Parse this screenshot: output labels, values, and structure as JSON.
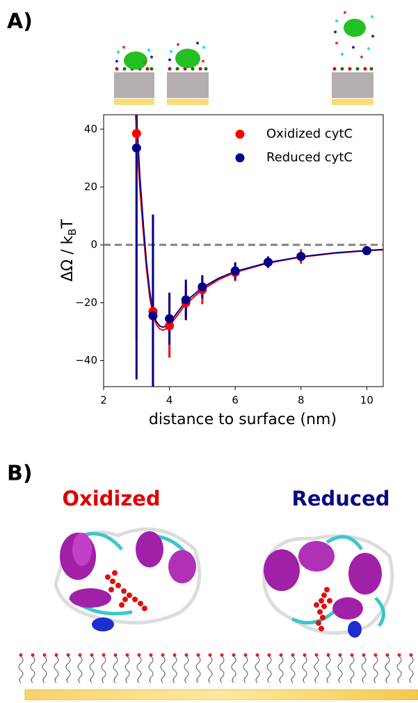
{
  "panels": {
    "a_label": "A)",
    "b_label": "B)",
    "b_titles": [
      "Oxidized",
      "Reduced"
    ]
  },
  "chart_data": {
    "type": "errorbar",
    "xlabel": "distance to surface (nm)",
    "ylabel": {
      "main": "ΔΩ / k",
      "sub": "B",
      "end": "T"
    },
    "xlim": [
      2,
      10.5
    ],
    "ylim": [
      -49,
      45
    ],
    "xticks": [
      2,
      4,
      6,
      8,
      10
    ],
    "yticks": [
      {
        "value": -40,
        "label": "−40"
      },
      {
        "value": -20,
        "label": "−20"
      },
      0,
      20,
      40
    ],
    "hline": {
      "value": 0,
      "color": "#808080",
      "dashed": true
    },
    "legend": "upper right",
    "series": [
      {
        "name": "Oxidized cytC",
        "color": "#ff0000",
        "x": [
          3,
          3.5,
          4,
          4.5,
          5,
          6,
          7,
          8,
          10
        ],
        "values": [
          38.5,
          -23,
          -28,
          -20,
          -15.5,
          -9.5,
          -6,
          -4,
          -2
        ],
        "errors": [
          71,
          33,
          11,
          6,
          5,
          3,
          2,
          2.5,
          1
        ]
      },
      {
        "name": "Reduced cytC",
        "color": "#00008b",
        "x": [
          3,
          3.5,
          4,
          4.5,
          5,
          6,
          7,
          8,
          10
        ],
        "values": [
          33.5,
          -24.5,
          -25.5,
          -19,
          -14.5,
          -9,
          -6,
          -4,
          -2
        ],
        "errors": [
          80,
          35,
          9,
          7,
          4,
          3,
          2,
          1,
          1
        ]
      }
    ],
    "fits": [
      {
        "color": "#ff0000",
        "x": [
          2.9,
          3.0,
          3.1,
          3.2,
          3.3,
          3.4,
          3.5,
          3.6,
          3.7,
          3.8,
          3.9,
          4.0,
          4.2,
          4.5,
          5,
          5.5,
          6,
          7,
          8,
          9,
          10,
          10.5
        ],
        "values": [
          62,
          38,
          20,
          5,
          -8,
          -18,
          -24,
          -27.5,
          -29,
          -29.5,
          -29,
          -28,
          -25,
          -20.5,
          -15.5,
          -12,
          -9.5,
          -6.3,
          -4.2,
          -2.9,
          -2,
          -1.7
        ]
      },
      {
        "color": "#00008b",
        "x": [
          2.9,
          3.0,
          3.1,
          3.2,
          3.3,
          3.4,
          3.5,
          3.6,
          3.7,
          3.8,
          3.9,
          4.0,
          4.2,
          4.5,
          5,
          5.5,
          6,
          7,
          8,
          9,
          10,
          10.5
        ],
        "values": [
          70,
          45,
          24,
          8,
          -6,
          -16,
          -23,
          -26.5,
          -28,
          -28.5,
          -28,
          -27,
          -24,
          -19.5,
          -14.8,
          -11.5,
          -9.2,
          -6.1,
          -4.1,
          -2.8,
          -1.9,
          -1.6
        ]
      }
    ]
  }
}
